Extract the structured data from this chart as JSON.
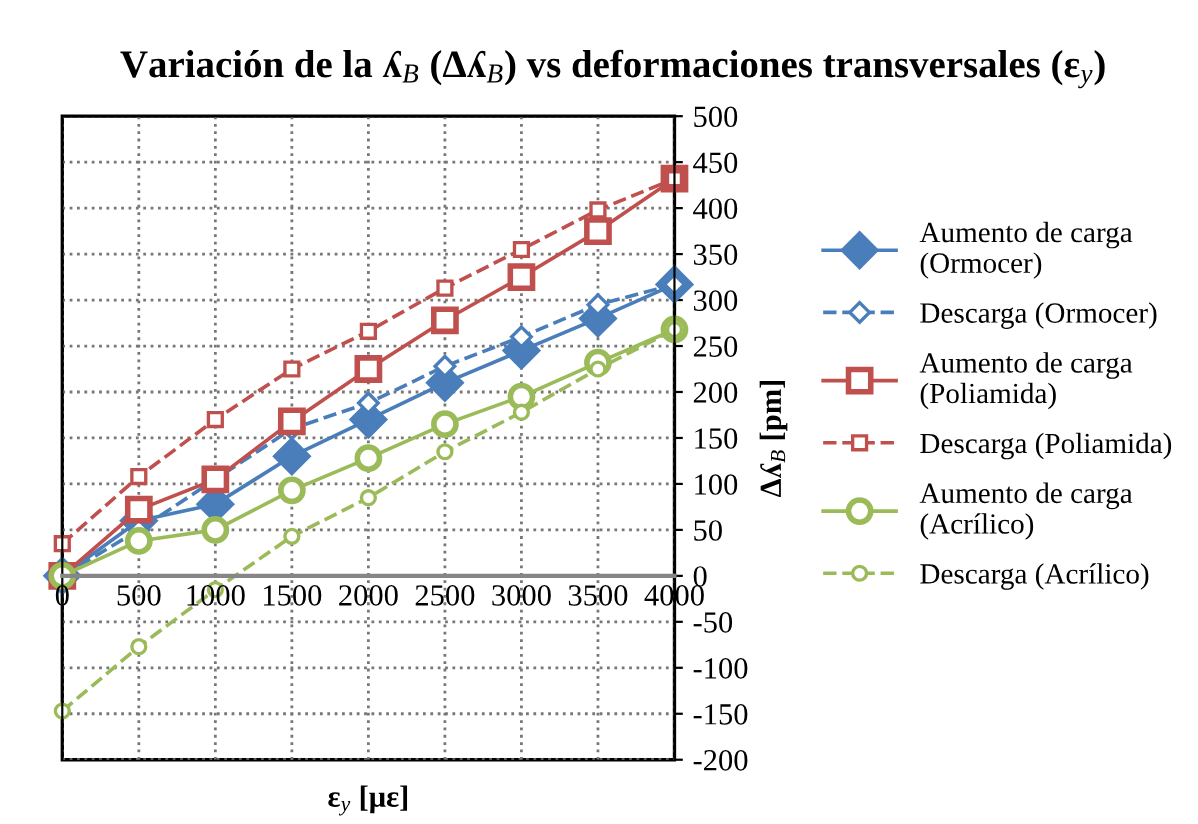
{
  "chart_data": {
    "type": "line",
    "title": "Variación de la ʎ$_{B}$ (Δʎ$_{B}$) vs deformaciones transversales (ε$_{y}$)",
    "xlabel": "ε$_{y}$ [με]",
    "ylabel": "Δʎ$_{B}$ [pm]",
    "x": [
      0,
      500,
      1000,
      1500,
      2000,
      2500,
      3000,
      3500,
      4000
    ],
    "xlim": [
      0,
      4000
    ],
    "xticks": [
      0,
      500,
      1000,
      1500,
      2000,
      2500,
      3000,
      3500,
      4000
    ],
    "ylim": [
      -200,
      500
    ],
    "yticks": [
      -200,
      -150,
      -100,
      -50,
      0,
      50,
      100,
      150,
      200,
      250,
      300,
      350,
      400,
      450,
      500
    ],
    "grid": true,
    "legend": "right",
    "series": [
      {
        "name": "Aumento de carga (Ormocer)",
        "color": "#4a7ebb",
        "marker": "diamond",
        "line_style": "solid",
        "values": [
          0,
          60,
          78,
          130,
          170,
          210,
          245,
          280,
          317
        ]
      },
      {
        "name": "Descarga (Ormocer)",
        "color": "#4a7ebb",
        "marker": "diamond",
        "line_style": "dashed",
        "values": [
          0,
          50,
          105,
          160,
          188,
          228,
          260,
          295,
          317
        ]
      },
      {
        "name": "Aumento de carga (Poliamida)",
        "color": "#c0504d",
        "marker": "square",
        "line_style": "solid",
        "values": [
          0,
          72,
          105,
          168,
          225,
          278,
          325,
          375,
          432
        ]
      },
      {
        "name": "Descarga (Poliamida)",
        "color": "#c0504d",
        "marker": "square",
        "line_style": "dashed",
        "values": [
          35,
          108,
          170,
          225,
          266,
          313,
          355,
          398,
          432
        ]
      },
      {
        "name": "Aumento de carga (Acrílico)",
        "color": "#9bbb59",
        "marker": "circle",
        "line_style": "solid",
        "values": [
          0,
          38,
          50,
          93,
          128,
          165,
          195,
          232,
          268
        ]
      },
      {
        "name": "Descarga (Acrílico)",
        "color": "#9bbb59",
        "marker": "circle",
        "line_style": "dashed",
        "values": [
          -147,
          -77,
          -15,
          43,
          85,
          135,
          178,
          225,
          268
        ]
      }
    ]
  }
}
